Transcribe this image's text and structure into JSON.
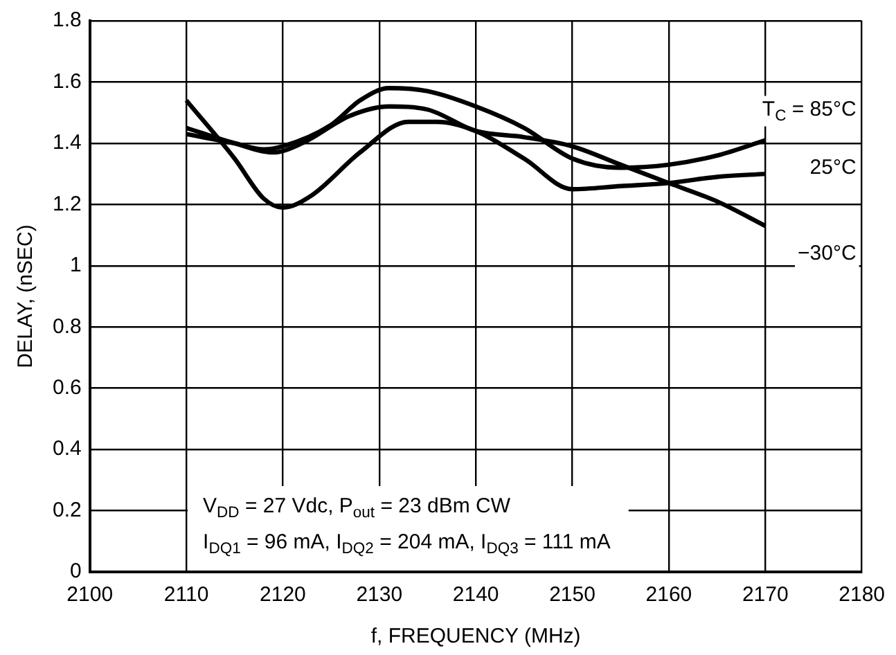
{
  "chart_data": {
    "type": "line",
    "xlabel": "f, FREQUENCY (MHz)",
    "ylabel": "DELAY, (nSEC)",
    "xlim": [
      2100,
      2180
    ],
    "xticks": [
      2100,
      2110,
      2120,
      2130,
      2140,
      2150,
      2160,
      2170,
      2180
    ],
    "ylim": [
      0,
      1.8
    ],
    "yticks": [
      0,
      0.2,
      0.4,
      0.6,
      0.8,
      1,
      1.2,
      1.4,
      1.6,
      1.8
    ],
    "grid": true,
    "legend": false,
    "marker": "none",
    "line_style": "solid",
    "series": [
      {
        "name": "T$_{C}$ = 85°C",
        "color": "#000000",
        "x": [
          2110,
          2115,
          2118,
          2120,
          2125,
          2128,
          2131,
          2135,
          2140,
          2145,
          2150,
          2155,
          2160,
          2165,
          2170
        ],
        "values": [
          1.43,
          1.4,
          1.38,
          1.39,
          1.46,
          1.54,
          1.58,
          1.57,
          1.52,
          1.45,
          1.35,
          1.32,
          1.33,
          1.36,
          1.41
        ]
      },
      {
        "name": "25°C",
        "color": "#000000",
        "x": [
          2110,
          2115,
          2118,
          2120,
          2123,
          2128,
          2133,
          2136,
          2140,
          2145,
          2150,
          2155,
          2160,
          2165,
          2170
        ],
        "values": [
          1.54,
          1.35,
          1.22,
          1.19,
          1.23,
          1.37,
          1.47,
          1.47,
          1.44,
          1.35,
          1.25,
          1.26,
          1.27,
          1.29,
          1.3
        ]
      },
      {
        "name": "−30°C",
        "color": "#000000",
        "x": [
          2110,
          2115,
          2119,
          2122,
          2127,
          2131,
          2135,
          2140,
          2145,
          2150,
          2155,
          2160,
          2165,
          2170
        ],
        "values": [
          1.45,
          1.4,
          1.37,
          1.4,
          1.49,
          1.52,
          1.51,
          1.44,
          1.42,
          1.39,
          1.33,
          1.27,
          1.21,
          1.13
        ]
      }
    ],
    "annotations": [
      "V$_{DD}$ = 27 Vdc, P$_{out}$ = 23 dBm CW",
      "I$_{DQ1}$ = 96 mA, I$_{DQ2}$ = 204 mA, I$_{DQ3}$ = 111 mA"
    ]
  }
}
